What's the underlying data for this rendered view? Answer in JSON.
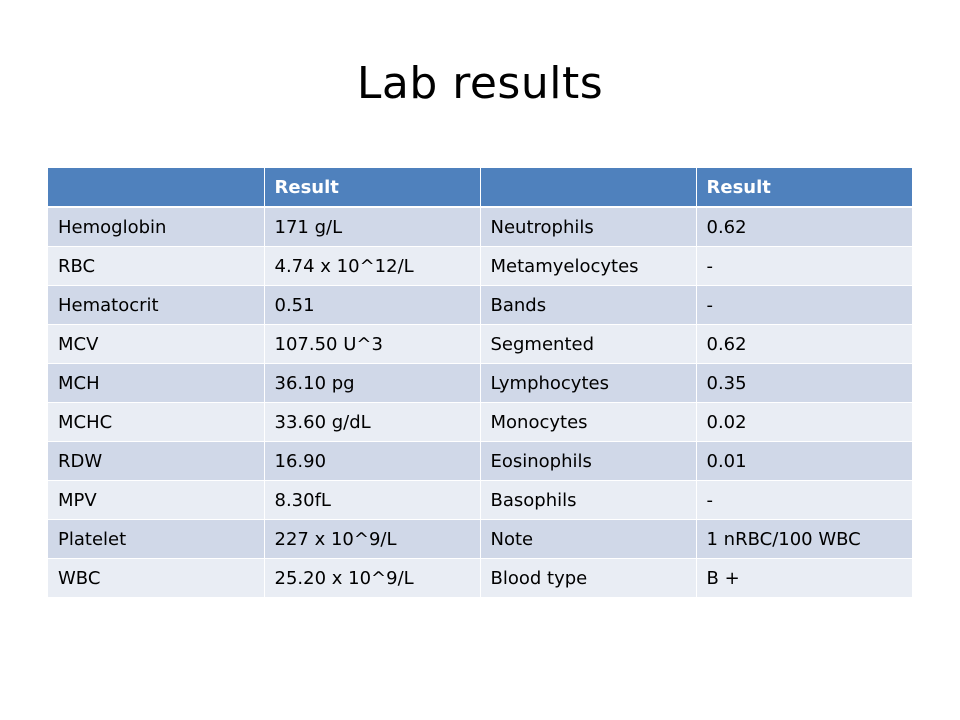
{
  "title": "Lab results",
  "table": {
    "headers": [
      "",
      "Result",
      "",
      "Result"
    ],
    "rows": [
      [
        "Hemoglobin",
        "171 g/L",
        "Neutrophils",
        "0.62"
      ],
      [
        "RBC",
        "4.74 x 10^12/L",
        "Metamyelocytes",
        "-"
      ],
      [
        "Hematocrit",
        "0.51",
        "Bands",
        "-"
      ],
      [
        "MCV",
        "107.50 U^3",
        "Segmented",
        "0.62"
      ],
      [
        "MCH",
        "36.10 pg",
        "Lymphocytes",
        "0.35"
      ],
      [
        "MCHC",
        "33.60 g/dL",
        "Monocytes",
        "0.02"
      ],
      [
        "RDW",
        "16.90",
        "Eosinophils",
        "0.01"
      ],
      [
        "MPV",
        "8.30fL",
        "Basophils",
        "-"
      ],
      [
        "Platelet",
        "227 x 10^9/L",
        "Note",
        "1 nRBC/100 WBC"
      ],
      [
        "WBC",
        "25.20 x 10^9/L",
        "Blood type",
        "B +"
      ]
    ]
  },
  "colors": {
    "header_bg": "#4f81bd",
    "row_odd_bg": "#d0d8e8",
    "row_even_bg": "#e9edf4"
  }
}
